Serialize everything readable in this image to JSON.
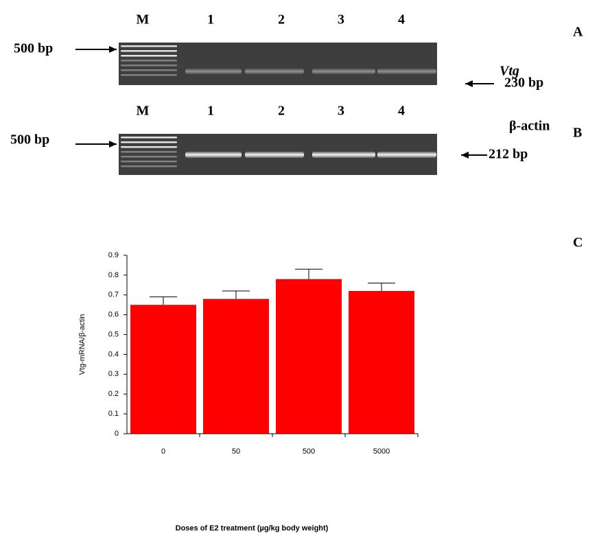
{
  "gels": [
    {
      "panel": "A",
      "lanes": [
        "M",
        "1",
        "2",
        "3",
        "4"
      ],
      "marker": "500 bp",
      "gene": "Vtg",
      "band": "230 bp"
    },
    {
      "panel": "B",
      "lanes": [
        "M",
        "1",
        "2",
        "3",
        "4"
      ],
      "marker": "500 bp",
      "gene": "β-actin",
      "band": "212 bp"
    }
  ],
  "chart_data": {
    "type": "bar",
    "panel": "C",
    "x_label": "Doses of E2 treatment (µg/kg body weight)",
    "y_label": "Vtg-mRNA/β-actin",
    "categories": [
      "0",
      "50",
      "500",
      "5000"
    ],
    "values": [
      0.65,
      0.68,
      0.78,
      0.72
    ],
    "errors": [
      0.04,
      0.04,
      0.05,
      0.04
    ],
    "color": "#ff0000",
    "ylim": [
      0,
      0.9
    ],
    "yticks": [
      0,
      0.1,
      0.2,
      0.3,
      0.4,
      0.5,
      0.6,
      0.7,
      0.8,
      0.9
    ]
  }
}
